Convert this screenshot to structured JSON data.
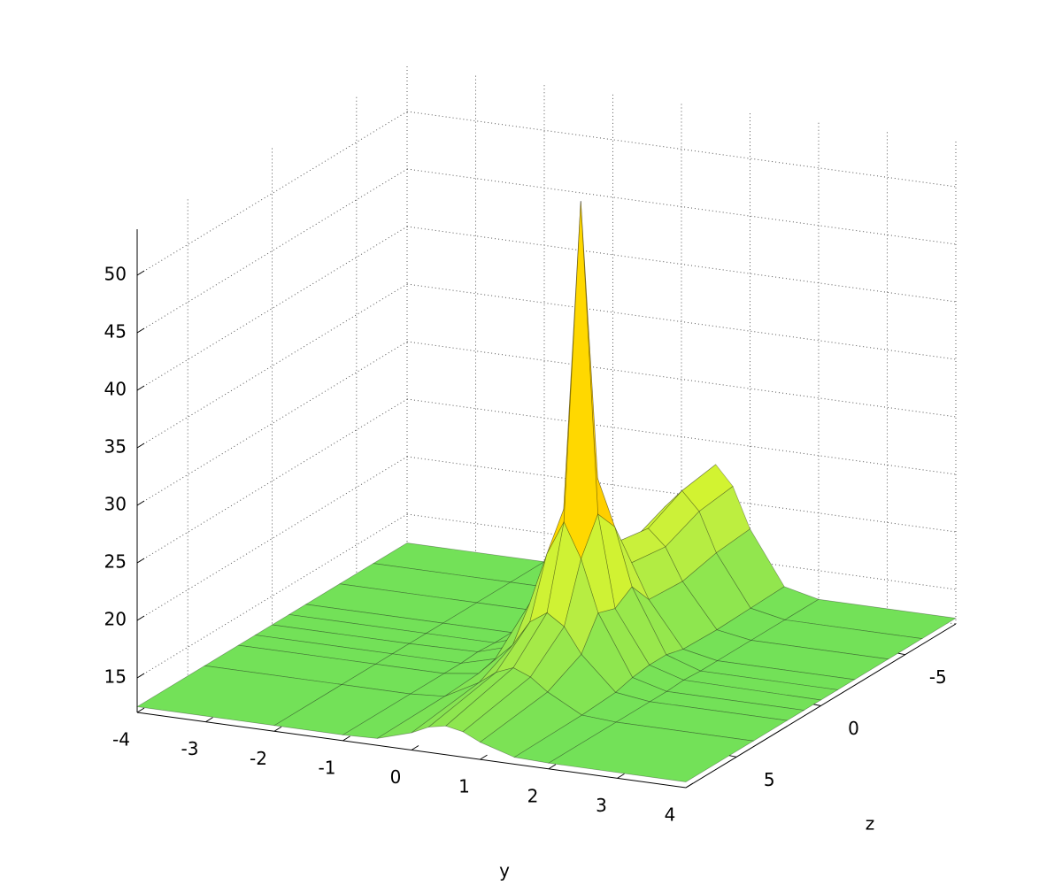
{
  "chart_data": {
    "type": "surface",
    "xlabel": "y",
    "ylabel": "z",
    "x": [
      -4,
      -2,
      -1,
      -0.5,
      0,
      0.25,
      0.5,
      0.75,
      1,
      1.5,
      2,
      4
    ],
    "y": [
      -8,
      -6,
      -4,
      -2,
      -1,
      0,
      1,
      2,
      4,
      8
    ],
    "values": [
      [
        12.5,
        12.5,
        12.5,
        13.2,
        17.8,
        21.3,
        23,
        21.3,
        17.8,
        13.2,
        12.5,
        12.5
      ],
      [
        12.5,
        12.5,
        12.5,
        13.1,
        17.5,
        20.9,
        22.5,
        20.9,
        17.5,
        13.1,
        12.5,
        12.5
      ],
      [
        12.5,
        12.5,
        12.5,
        13,
        16.8,
        19.6,
        21,
        19.6,
        16.8,
        13,
        12.5,
        12.5
      ],
      [
        12.5,
        12.5,
        12.5,
        13.1,
        17,
        20,
        21.5,
        20,
        17,
        13.1,
        12.5,
        12.5
      ],
      [
        12.5,
        12.5,
        12.5,
        13.5,
        19,
        24,
        28,
        24,
        19,
        13.5,
        12.5,
        12.5
      ],
      [
        12.5,
        12.5,
        12.6,
        13.5,
        18,
        26,
        53,
        26,
        18,
        13.5,
        12.6,
        12.5
      ],
      [
        12.5,
        12.5,
        12.5,
        13.3,
        18.5,
        23,
        26,
        23,
        18.5,
        13.3,
        12.5,
        12.5
      ],
      [
        12.5,
        12.5,
        12.5,
        12.9,
        15.8,
        18,
        19,
        18,
        15.8,
        12.9,
        12.5,
        12.5
      ],
      [
        12.5,
        12.5,
        12.5,
        12.7,
        14.3,
        15.4,
        16,
        15.4,
        14.3,
        12.7,
        12.5,
        12.5
      ],
      [
        12.5,
        12.5,
        12.5,
        12.6,
        13.5,
        14.2,
        14.5,
        14.2,
        13.5,
        12.6,
        12.5,
        12.5
      ]
    ],
    "xlim": [
      -4,
      4
    ],
    "ylim": [
      -8,
      8
    ],
    "zlim": [
      12,
      54
    ],
    "xticks": [
      -4,
      -3,
      -2,
      -1,
      0,
      1,
      2,
      3,
      4
    ],
    "yticks": [
      -5,
      0,
      5
    ],
    "zticks": [
      15,
      20,
      25,
      30,
      35,
      40,
      45,
      50
    ],
    "grid": true,
    "colormap": [
      "#6ee05a",
      "#c8f03c",
      "#ffff00",
      "#ff9900",
      "#ff2200",
      "#8b0000"
    ]
  }
}
